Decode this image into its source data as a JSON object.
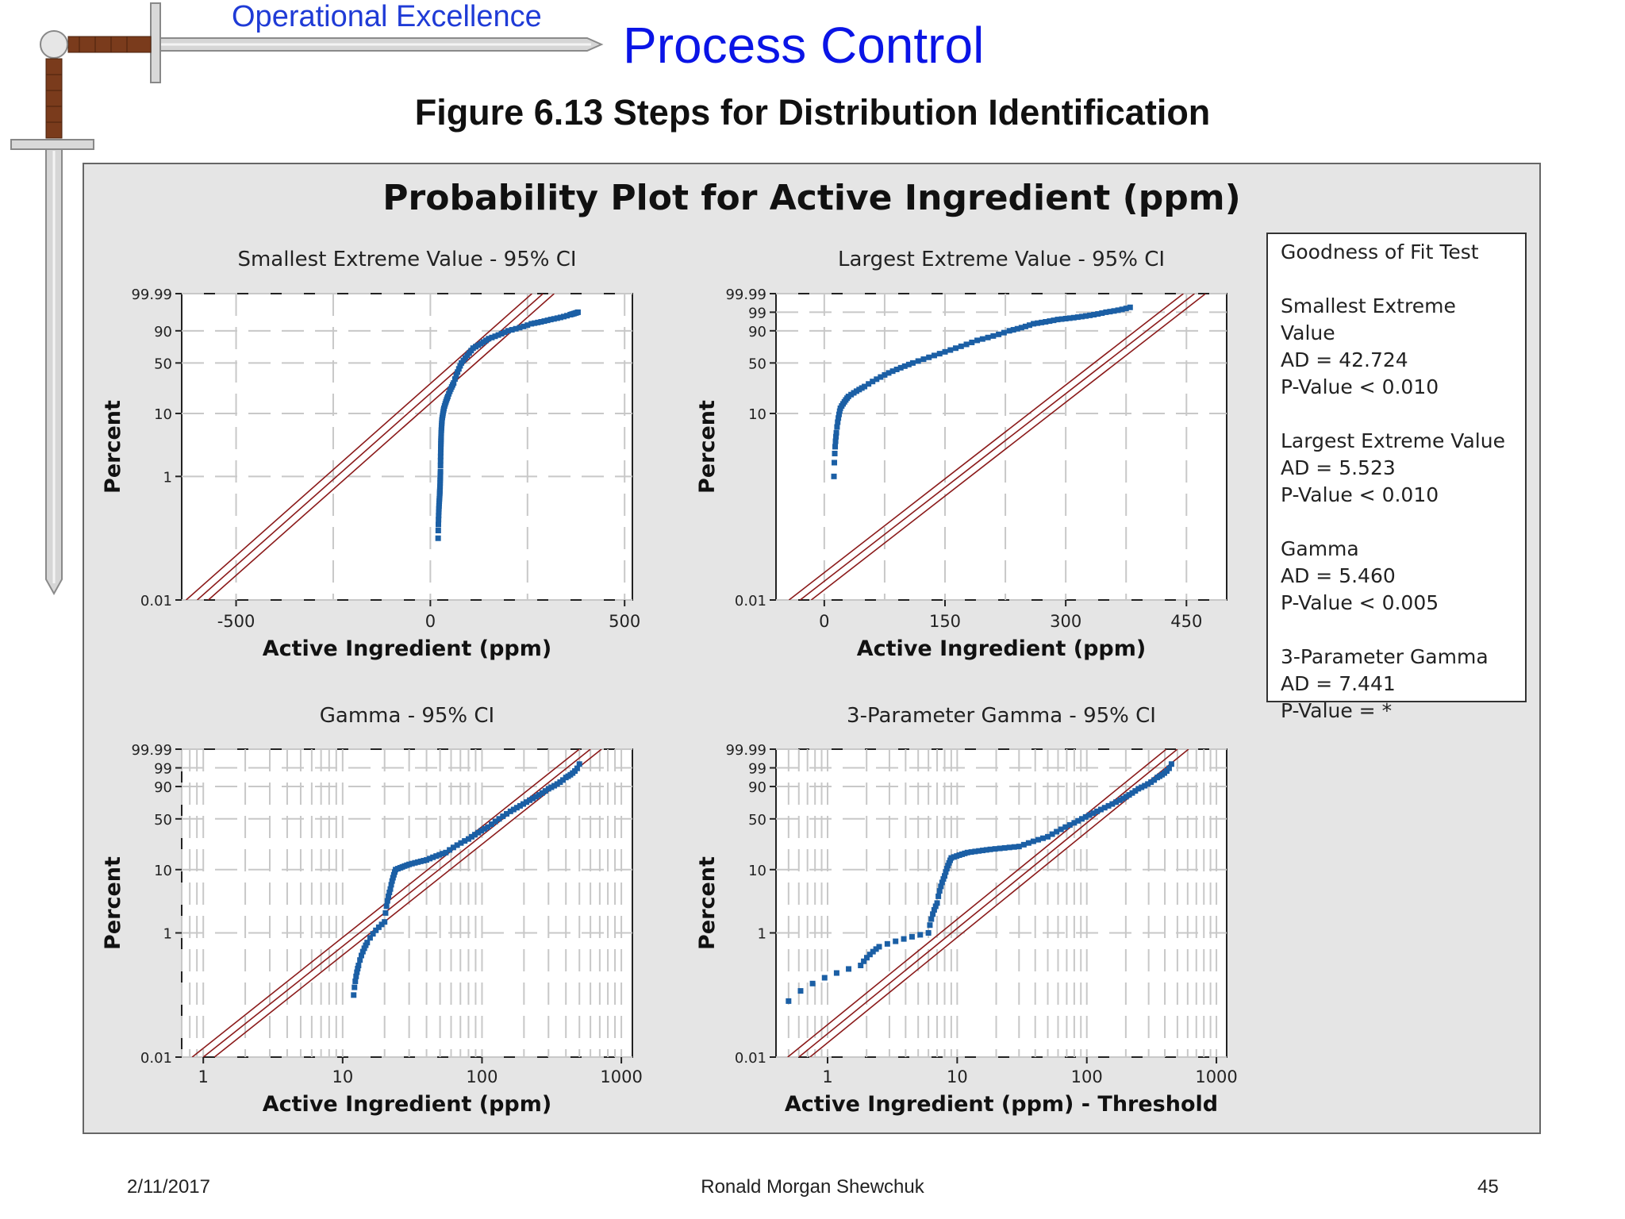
{
  "header": {
    "brand": "Operational Excellence",
    "title": "Process Control",
    "figure_title": "Figure 6.13  Steps for Distribution Identification"
  },
  "footer": {
    "date": "2/11/2017",
    "author": "Ronald Morgan Shewchuk",
    "page": "45"
  },
  "colors": {
    "data_points": "#1b5fa5",
    "fit_lines": "#8b1a1a",
    "panel_bg": "#e5e5e5",
    "title_blue": "#0a14e6"
  },
  "goodness_of_fit": {
    "title": "Goodness of Fit Test",
    "entries": [
      {
        "name": "Smallest Extreme Value",
        "ad": "AD = 42.724",
        "p": "P-Value < 0.010"
      },
      {
        "name": "Largest Extreme Value",
        "ad": "AD = 5.523",
        "p": "P-Value < 0.010"
      },
      {
        "name": "Gamma",
        "ad": "AD = 5.460",
        "p": "P-Value < 0.005"
      },
      {
        "name": "3-Parameter Gamma",
        "ad": "AD = 7.441",
        "p": "P-Value = *"
      }
    ]
  },
  "chart_data": {
    "type": "scatter",
    "title": "Probability Plot for Active Ingredient (ppm)",
    "panels": [
      {
        "id": "sev",
        "subtitle": "Smallest Extreme Value - 95% CI",
        "xlabel": "Active Ingredient (ppm)",
        "ylabel": "Percent",
        "xscale": "linear",
        "xlim": [
          -640,
          520
        ],
        "xticks": [
          -500,
          0,
          500
        ],
        "yticks": [
          "99.99",
          "90",
          "50",
          "10",
          "1",
          "0.01"
        ],
        "fit_line": [
          [
            -600,
            0.01
          ],
          [
            290,
            99.99
          ]
        ],
        "points": [
          [
            20,
            0.1
          ],
          [
            22,
            0.3
          ],
          [
            24,
            0.5
          ],
          [
            25,
            0.7
          ],
          [
            26,
            1.2
          ],
          [
            27,
            3
          ],
          [
            28,
            5
          ],
          [
            30,
            8
          ],
          [
            35,
            12
          ],
          [
            45,
            18
          ],
          [
            60,
            28
          ],
          [
            80,
            50
          ],
          [
            110,
            70
          ],
          [
            150,
            82
          ],
          [
            200,
            90
          ],
          [
            260,
            95
          ],
          [
            310,
            97
          ],
          [
            360,
            98.5
          ],
          [
            380,
            99
          ]
        ]
      },
      {
        "id": "lev",
        "subtitle": "Largest Extreme Value - 95% CI",
        "xlabel": "Active Ingredient (ppm)",
        "ylabel": "Percent",
        "xscale": "linear",
        "xlim": [
          -60,
          500
        ],
        "xticks": [
          0,
          150,
          300,
          450
        ],
        "yticks": [
          "99.99",
          "99",
          "90",
          "50",
          "10",
          "0.01"
        ],
        "fit_line": [
          [
            -30,
            0.01
          ],
          [
            460,
            99.99
          ]
        ],
        "points": [
          [
            12,
            1
          ],
          [
            15,
            5
          ],
          [
            20,
            12
          ],
          [
            30,
            18
          ],
          [
            50,
            25
          ],
          [
            80,
            38
          ],
          [
            110,
            50
          ],
          [
            150,
            65
          ],
          [
            190,
            80
          ],
          [
            230,
            90
          ],
          [
            260,
            95
          ],
          [
            290,
            97
          ],
          [
            320,
            98
          ],
          [
            350,
            99
          ],
          [
            380,
            99.6
          ]
        ]
      },
      {
        "id": "gamma",
        "subtitle": "Gamma - 95% CI",
        "xlabel": "Active Ingredient (ppm)",
        "ylabel": "Percent",
        "xscale": "log",
        "xlim": [
          0.7,
          1200
        ],
        "xticks": [
          1,
          10,
          100,
          1000
        ],
        "yticks": [
          "99.99",
          "99",
          "90",
          "50",
          "10",
          "1",
          "0.01"
        ],
        "fit_line": [
          [
            1,
            0.01
          ],
          [
            600,
            99.99
          ]
        ],
        "points": [
          [
            12,
            0.1
          ],
          [
            13,
            0.3
          ],
          [
            15,
            0.7
          ],
          [
            20,
            1.5
          ],
          [
            22,
            5
          ],
          [
            24,
            10
          ],
          [
            30,
            12
          ],
          [
            40,
            14
          ],
          [
            55,
            18
          ],
          [
            80,
            28
          ],
          [
            110,
            40
          ],
          [
            160,
            60
          ],
          [
            220,
            75
          ],
          [
            300,
            88
          ],
          [
            400,
            96
          ],
          [
            500,
            99.5
          ]
        ]
      },
      {
        "id": "gamma3",
        "subtitle": "3-Parameter Gamma - 95% CI",
        "xlabel": "Active Ingredient (ppm) - Threshold",
        "ylabel": "Percent",
        "xscale": "log",
        "xlim": [
          0.4,
          1200
        ],
        "xticks": [
          1,
          10,
          100,
          1000
        ],
        "yticks": [
          "99.99",
          "99",
          "90",
          "50",
          "10",
          "1",
          "0.01"
        ],
        "fit_line": [
          [
            0.6,
            0.01
          ],
          [
            500,
            99.99
          ]
        ],
        "points": [
          [
            0.5,
            0.08
          ],
          [
            1.8,
            0.3
          ],
          [
            2.5,
            0.6
          ],
          [
            6,
            1
          ],
          [
            7,
            3
          ],
          [
            8,
            8
          ],
          [
            9,
            15
          ],
          [
            12,
            18
          ],
          [
            18,
            20
          ],
          [
            30,
            22
          ],
          [
            50,
            30
          ],
          [
            80,
            45
          ],
          [
            120,
            60
          ],
          [
            180,
            75
          ],
          [
            250,
            88
          ],
          [
            350,
            96
          ],
          [
            450,
            99.5
          ]
        ]
      }
    ]
  }
}
